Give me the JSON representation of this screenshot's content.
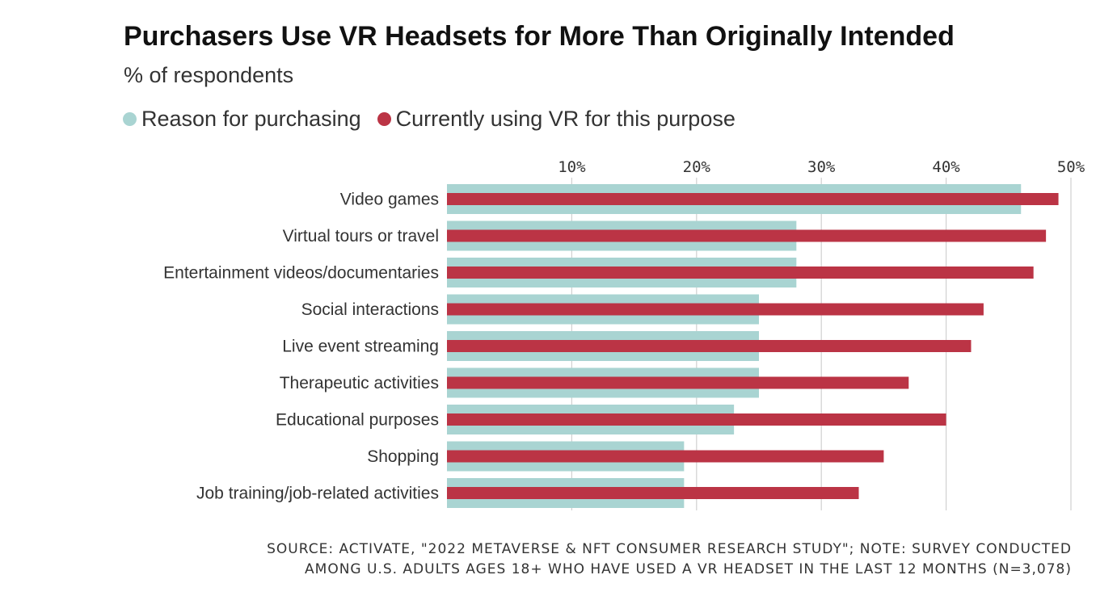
{
  "title": "Purchasers Use VR Headsets for More Than Originally Intended",
  "subtitle": "% of respondents",
  "legend": [
    {
      "label": "Reason for purchasing",
      "color": "#a9d4d2"
    },
    {
      "label": "Currently using VR for this purpose",
      "color": "#bb3445"
    }
  ],
  "chart_data": {
    "type": "bar",
    "orientation": "horizontal",
    "categories": [
      "Video games",
      "Virtual tours or travel",
      "Entertainment videos/documentaries",
      "Social interactions",
      "Live event streaming",
      "Therapeutic activities",
      "Educational purposes",
      "Shopping",
      "Job training/job-related activities"
    ],
    "series": [
      {
        "name": "Reason for purchasing",
        "color": "#a9d4d2",
        "values": [
          46,
          28,
          28,
          25,
          25,
          25,
          23,
          19,
          19
        ]
      },
      {
        "name": "Currently using VR for this purpose",
        "color": "#bb3445",
        "values": [
          49,
          48,
          47,
          43,
          42,
          37,
          40,
          35,
          33
        ]
      }
    ],
    "xlim": [
      0,
      50
    ],
    "x_ticks": [
      10,
      20,
      30,
      40,
      50
    ],
    "x_tick_labels": [
      "10%",
      "20%",
      "30%",
      "40%",
      "50%"
    ],
    "x_axis_position": "top",
    "grid": true,
    "legend_position": "top-left"
  },
  "source_lines": [
    "SOURCE: ACTIVATE, \"2022 METAVERSE & NFT CONSUMER RESEARCH STUDY\"; NOTE: SURVEY CONDUCTED",
    "AMONG U.S. ADULTS AGES 18+ WHO HAVE USED A VR HEADSET IN THE LAST 12 MONTHS (N=3,078)"
  ]
}
